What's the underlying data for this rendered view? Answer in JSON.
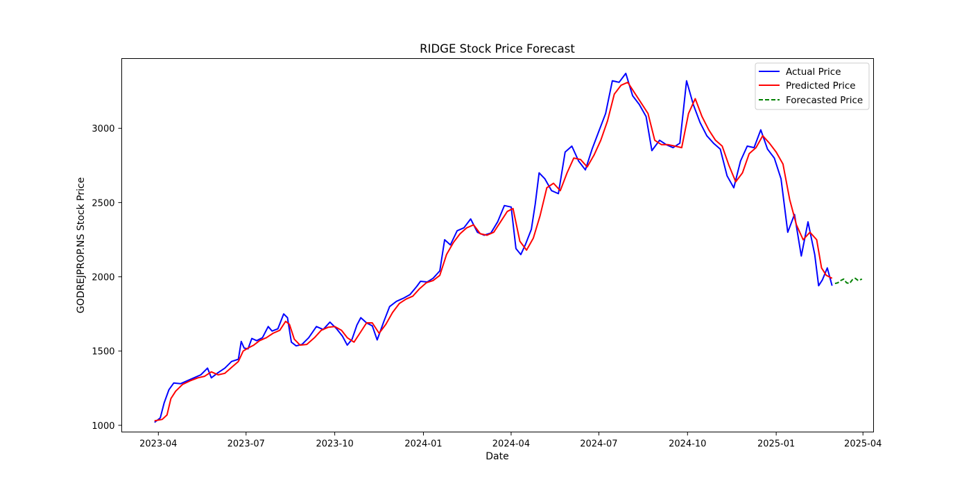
{
  "chart_data": {
    "type": "line",
    "title": "RIDGE Stock Price Forecast",
    "xlabel": "Date",
    "ylabel": "GODREJPROP.NS Stock Price",
    "xlim": [
      "2023-02-22",
      "2025-04-12"
    ],
    "ylim": [
      955,
      3470
    ],
    "x_ticks": [
      "2023-04-01",
      "2023-07-01",
      "2023-10-01",
      "2024-01-01",
      "2024-04-01",
      "2024-07-01",
      "2024-10-01",
      "2025-01-01",
      "2025-04-01"
    ],
    "x_tick_labels": [
      "2023-04",
      "2023-07",
      "2023-10",
      "2024-01",
      "2024-04",
      "2024-07",
      "2024-10",
      "2025-01",
      "2025-04"
    ],
    "y_ticks": [
      1000,
      1500,
      2000,
      2500,
      3000
    ],
    "y_tick_labels": [
      "1000",
      "1500",
      "2000",
      "2500",
      "3000"
    ],
    "grid": false,
    "legend_position": "top-right",
    "series": [
      {
        "name": "Actual Price",
        "color": "#0000ff",
        "style": "solid",
        "points": [
          [
            "2023-03-28",
            1020
          ],
          [
            "2023-04-03",
            1050
          ],
          [
            "2023-04-07",
            1150
          ],
          [
            "2023-04-12",
            1240
          ],
          [
            "2023-04-17",
            1285
          ],
          [
            "2023-04-24",
            1280
          ],
          [
            "2023-05-01",
            1300
          ],
          [
            "2023-05-08",
            1320
          ],
          [
            "2023-05-15",
            1340
          ],
          [
            "2023-05-22",
            1385
          ],
          [
            "2023-05-26",
            1320
          ],
          [
            "2023-06-02",
            1355
          ],
          [
            "2023-06-09",
            1385
          ],
          [
            "2023-06-16",
            1430
          ],
          [
            "2023-06-23",
            1445
          ],
          [
            "2023-06-26",
            1565
          ],
          [
            "2023-06-29",
            1520
          ],
          [
            "2023-07-03",
            1515
          ],
          [
            "2023-07-07",
            1585
          ],
          [
            "2023-07-12",
            1570
          ],
          [
            "2023-07-18",
            1590
          ],
          [
            "2023-07-24",
            1665
          ],
          [
            "2023-07-28",
            1635
          ],
          [
            "2023-08-03",
            1650
          ],
          [
            "2023-08-09",
            1750
          ],
          [
            "2023-08-13",
            1725
          ],
          [
            "2023-08-17",
            1560
          ],
          [
            "2023-08-22",
            1535
          ],
          [
            "2023-08-28",
            1545
          ],
          [
            "2023-09-04",
            1590
          ],
          [
            "2023-09-12",
            1665
          ],
          [
            "2023-09-19",
            1645
          ],
          [
            "2023-09-26",
            1695
          ],
          [
            "2023-10-03",
            1650
          ],
          [
            "2023-10-09",
            1600
          ],
          [
            "2023-10-14",
            1540
          ],
          [
            "2023-10-19",
            1580
          ],
          [
            "2023-10-24",
            1675
          ],
          [
            "2023-10-28",
            1725
          ],
          [
            "2023-11-03",
            1690
          ],
          [
            "2023-11-09",
            1670
          ],
          [
            "2023-11-14",
            1575
          ],
          [
            "2023-11-21",
            1700
          ],
          [
            "2023-11-27",
            1800
          ],
          [
            "2023-12-04",
            1835
          ],
          [
            "2023-12-11",
            1855
          ],
          [
            "2023-12-18",
            1880
          ],
          [
            "2023-12-25",
            1935
          ],
          [
            "2023-12-29",
            1970
          ],
          [
            "2024-01-05",
            1965
          ],
          [
            "2024-01-11",
            1990
          ],
          [
            "2024-01-18",
            2040
          ],
          [
            "2024-01-23",
            2250
          ],
          [
            "2024-01-29",
            2215
          ],
          [
            "2024-02-05",
            2310
          ],
          [
            "2024-02-12",
            2330
          ],
          [
            "2024-02-19",
            2390
          ],
          [
            "2024-02-26",
            2300
          ],
          [
            "2024-03-04",
            2280
          ],
          [
            "2024-03-11",
            2295
          ],
          [
            "2024-03-18",
            2370
          ],
          [
            "2024-03-25",
            2480
          ],
          [
            "2024-04-01",
            2470
          ],
          [
            "2024-04-06",
            2190
          ],
          [
            "2024-04-11",
            2150
          ],
          [
            "2024-04-16",
            2220
          ],
          [
            "2024-04-22",
            2320
          ],
          [
            "2024-04-26",
            2490
          ],
          [
            "2024-04-30",
            2700
          ],
          [
            "2024-05-06",
            2660
          ],
          [
            "2024-05-13",
            2580
          ],
          [
            "2024-05-20",
            2560
          ],
          [
            "2024-05-27",
            2840
          ],
          [
            "2024-06-03",
            2880
          ],
          [
            "2024-06-10",
            2780
          ],
          [
            "2024-06-17",
            2720
          ],
          [
            "2024-06-24",
            2860
          ],
          [
            "2024-07-01",
            2980
          ],
          [
            "2024-07-08",
            3100
          ],
          [
            "2024-07-15",
            3320
          ],
          [
            "2024-07-22",
            3310
          ],
          [
            "2024-07-29",
            3370
          ],
          [
            "2024-08-05",
            3220
          ],
          [
            "2024-08-12",
            3160
          ],
          [
            "2024-08-19",
            3080
          ],
          [
            "2024-08-25",
            2850
          ],
          [
            "2024-09-02",
            2920
          ],
          [
            "2024-09-09",
            2890
          ],
          [
            "2024-09-16",
            2870
          ],
          [
            "2024-09-23",
            2900
          ],
          [
            "2024-09-30",
            3320
          ],
          [
            "2024-10-07",
            3160
          ],
          [
            "2024-10-14",
            3040
          ],
          [
            "2024-10-21",
            2950
          ],
          [
            "2024-10-28",
            2900
          ],
          [
            "2024-11-04",
            2860
          ],
          [
            "2024-11-11",
            2680
          ],
          [
            "2024-11-18",
            2600
          ],
          [
            "2024-11-25",
            2780
          ],
          [
            "2024-12-02",
            2880
          ],
          [
            "2024-12-09",
            2870
          ],
          [
            "2024-12-16",
            2990
          ],
          [
            "2024-12-23",
            2860
          ],
          [
            "2024-12-30",
            2800
          ],
          [
            "2025-01-06",
            2660
          ],
          [
            "2025-01-13",
            2300
          ],
          [
            "2025-01-20",
            2420
          ],
          [
            "2025-01-27",
            2140
          ],
          [
            "2025-02-03",
            2370
          ],
          [
            "2025-02-10",
            2150
          ],
          [
            "2025-02-14",
            1940
          ],
          [
            "2025-02-18",
            1980
          ],
          [
            "2025-02-23",
            2060
          ],
          [
            "2025-02-28",
            1940
          ]
        ]
      },
      {
        "name": "Predicted Price",
        "color": "#ff0000",
        "style": "solid",
        "points": [
          [
            "2023-03-28",
            1030
          ],
          [
            "2023-04-05",
            1040
          ],
          [
            "2023-04-10",
            1070
          ],
          [
            "2023-04-14",
            1180
          ],
          [
            "2023-04-19",
            1230
          ],
          [
            "2023-04-26",
            1275
          ],
          [
            "2023-05-04",
            1300
          ],
          [
            "2023-05-12",
            1320
          ],
          [
            "2023-05-19",
            1330
          ],
          [
            "2023-05-26",
            1360
          ],
          [
            "2023-06-02",
            1340
          ],
          [
            "2023-06-09",
            1350
          ],
          [
            "2023-06-16",
            1390
          ],
          [
            "2023-06-23",
            1430
          ],
          [
            "2023-06-28",
            1500
          ],
          [
            "2023-07-03",
            1520
          ],
          [
            "2023-07-09",
            1540
          ],
          [
            "2023-07-15",
            1570
          ],
          [
            "2023-07-22",
            1590
          ],
          [
            "2023-07-29",
            1620
          ],
          [
            "2023-08-05",
            1640
          ],
          [
            "2023-08-11",
            1700
          ],
          [
            "2023-08-15",
            1680
          ],
          [
            "2023-08-20",
            1580
          ],
          [
            "2023-08-26",
            1540
          ],
          [
            "2023-09-02",
            1545
          ],
          [
            "2023-09-10",
            1590
          ],
          [
            "2023-09-17",
            1640
          ],
          [
            "2023-09-24",
            1660
          ],
          [
            "2023-10-01",
            1665
          ],
          [
            "2023-10-08",
            1640
          ],
          [
            "2023-10-14",
            1590
          ],
          [
            "2023-10-21",
            1560
          ],
          [
            "2023-10-27",
            1620
          ],
          [
            "2023-11-03",
            1690
          ],
          [
            "2023-11-09",
            1690
          ],
          [
            "2023-11-16",
            1620
          ],
          [
            "2023-11-23",
            1680
          ],
          [
            "2023-11-30",
            1760
          ],
          [
            "2023-12-07",
            1820
          ],
          [
            "2023-12-14",
            1850
          ],
          [
            "2023-12-21",
            1870
          ],
          [
            "2023-12-28",
            1920
          ],
          [
            "2024-01-04",
            1960
          ],
          [
            "2024-01-11",
            1975
          ],
          [
            "2024-01-18",
            2010
          ],
          [
            "2024-01-25",
            2150
          ],
          [
            "2024-02-01",
            2230
          ],
          [
            "2024-02-08",
            2290
          ],
          [
            "2024-02-15",
            2330
          ],
          [
            "2024-02-22",
            2350
          ],
          [
            "2024-02-29",
            2290
          ],
          [
            "2024-03-07",
            2280
          ],
          [
            "2024-03-14",
            2300
          ],
          [
            "2024-03-21",
            2370
          ],
          [
            "2024-03-28",
            2440
          ],
          [
            "2024-04-03",
            2460
          ],
          [
            "2024-04-10",
            2240
          ],
          [
            "2024-04-17",
            2180
          ],
          [
            "2024-04-24",
            2260
          ],
          [
            "2024-05-01",
            2410
          ],
          [
            "2024-05-08",
            2600
          ],
          [
            "2024-05-15",
            2630
          ],
          [
            "2024-05-22",
            2580
          ],
          [
            "2024-05-29",
            2700
          ],
          [
            "2024-06-05",
            2800
          ],
          [
            "2024-06-12",
            2790
          ],
          [
            "2024-06-19",
            2740
          ],
          [
            "2024-06-26",
            2820
          ],
          [
            "2024-07-03",
            2920
          ],
          [
            "2024-07-10",
            3050
          ],
          [
            "2024-07-17",
            3230
          ],
          [
            "2024-07-24",
            3290
          ],
          [
            "2024-07-31",
            3310
          ],
          [
            "2024-08-07",
            3240
          ],
          [
            "2024-08-14",
            3170
          ],
          [
            "2024-08-21",
            3100
          ],
          [
            "2024-08-28",
            2920
          ],
          [
            "2024-09-04",
            2890
          ],
          [
            "2024-09-11",
            2890
          ],
          [
            "2024-09-18",
            2880
          ],
          [
            "2024-09-25",
            2870
          ],
          [
            "2024-10-02",
            3100
          ],
          [
            "2024-10-09",
            3200
          ],
          [
            "2024-10-16",
            3080
          ],
          [
            "2024-10-23",
            2990
          ],
          [
            "2024-10-30",
            2920
          ],
          [
            "2024-11-06",
            2880
          ],
          [
            "2024-11-13",
            2750
          ],
          [
            "2024-11-20",
            2640
          ],
          [
            "2024-11-27",
            2700
          ],
          [
            "2024-12-04",
            2830
          ],
          [
            "2024-12-11",
            2870
          ],
          [
            "2024-12-18",
            2950
          ],
          [
            "2024-12-25",
            2900
          ],
          [
            "2025-01-01",
            2840
          ],
          [
            "2025-01-08",
            2760
          ],
          [
            "2025-01-15",
            2520
          ],
          [
            "2025-01-22",
            2350
          ],
          [
            "2025-01-29",
            2250
          ],
          [
            "2025-02-05",
            2300
          ],
          [
            "2025-02-12",
            2250
          ],
          [
            "2025-02-17",
            2060
          ],
          [
            "2025-02-22",
            2010
          ],
          [
            "2025-02-28",
            1990
          ]
        ]
      },
      {
        "name": "Forecasted Price",
        "color": "#008000",
        "style": "dashed",
        "points": [
          [
            "2025-03-03",
            1955
          ],
          [
            "2025-03-06",
            1960
          ],
          [
            "2025-03-09",
            1975
          ],
          [
            "2025-03-12",
            1985
          ],
          [
            "2025-03-15",
            1960
          ],
          [
            "2025-03-18",
            1955
          ],
          [
            "2025-03-21",
            1980
          ],
          [
            "2025-03-24",
            1990
          ],
          [
            "2025-03-27",
            1975
          ],
          [
            "2025-03-31",
            1985
          ]
        ]
      }
    ]
  }
}
